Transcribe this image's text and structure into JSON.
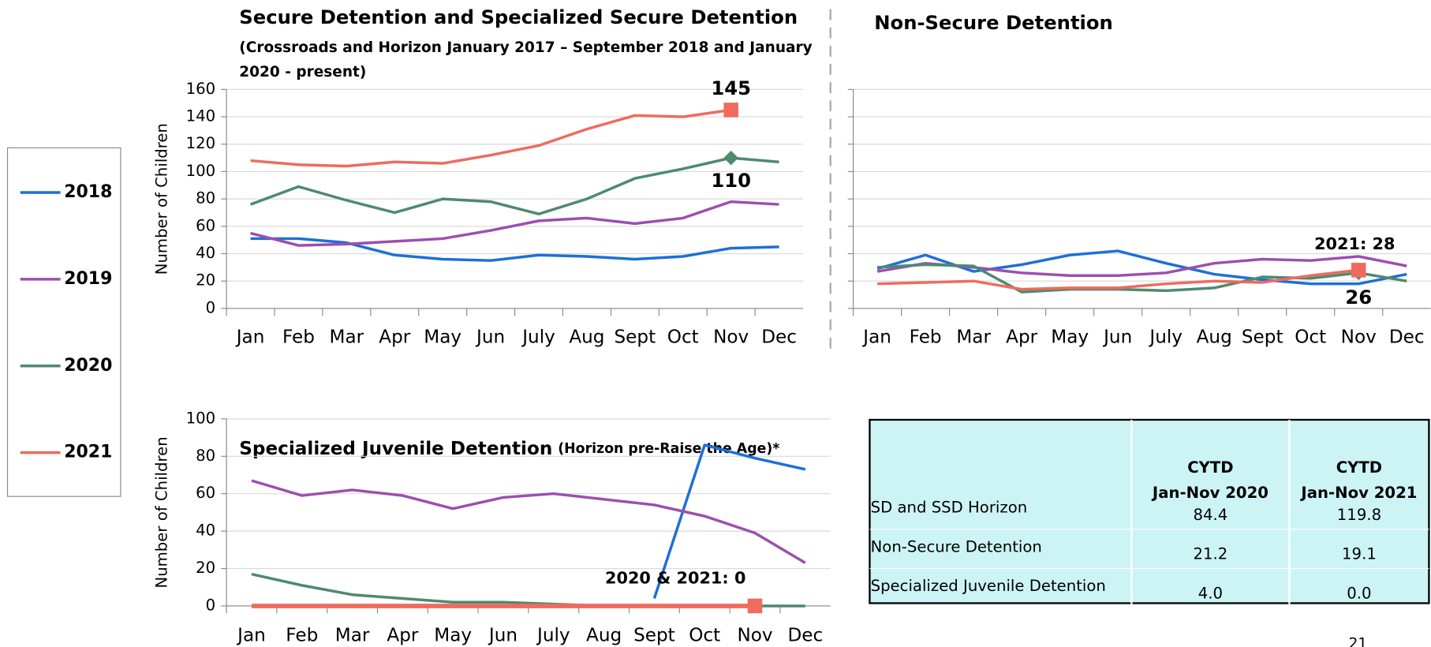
{
  "chart_data": [
    {
      "type": "line",
      "title": "Secure Detention and Specialized Secure Detention",
      "subtitle": "(Crossroads and Horizon January  2017 – September 2018 and January 2020 - present)",
      "ylabel": "Number of Children",
      "categories": [
        "Jan",
        "Feb",
        "Mar",
        "Apr",
        "May",
        "Jun",
        "July",
        "Aug",
        "Sept",
        "Oct",
        "Nov",
        "Dec"
      ],
      "ylim": [
        0,
        160
      ],
      "yticks": [
        0,
        20,
        40,
        60,
        80,
        100,
        120,
        140,
        160
      ],
      "grid": true,
      "series": [
        {
          "name": "2018",
          "color": "#1d6fd8",
          "values": [
            51,
            51,
            48,
            39,
            36,
            35,
            39,
            38,
            36,
            38,
            44,
            45
          ]
        },
        {
          "name": "2019",
          "color": "#9b4fb0",
          "values": [
            55,
            46,
            47,
            49,
            51,
            57,
            64,
            66,
            62,
            66,
            78,
            76
          ]
        },
        {
          "name": "2020",
          "color": "#4e8a6e",
          "marker": "diamond",
          "values": [
            76,
            89,
            79,
            70,
            80,
            78,
            69,
            80,
            95,
            102,
            110,
            107
          ],
          "value_labels": [
            null,
            null,
            null,
            null,
            null,
            null,
            null,
            null,
            null,
            null,
            "110",
            null
          ]
        },
        {
          "name": "2021",
          "color": "#ee6b5e",
          "marker": "square",
          "values": [
            108,
            105,
            104,
            107,
            106,
            112,
            119,
            131,
            141,
            140,
            145,
            null
          ],
          "value_labels": [
            null,
            null,
            null,
            null,
            null,
            null,
            null,
            null,
            null,
            null,
            "145",
            null
          ]
        }
      ]
    },
    {
      "type": "line",
      "title": "Non-Secure Detention",
      "categories": [
        "Jan",
        "Feb",
        "Mar",
        "Apr",
        "May",
        "Jun",
        "July",
        "Aug",
        "Sept",
        "Oct",
        "Nov",
        "Dec"
      ],
      "ylim": [
        0,
        160
      ],
      "yticks": [
        0,
        20,
        40,
        60,
        80,
        100,
        120,
        140,
        160
      ],
      "grid": true,
      "ytick_labels": false,
      "series": [
        {
          "color": "#1d6fd8",
          "values": [
            29,
            39,
            27,
            32,
            39,
            42,
            33,
            25,
            21,
            18,
            18,
            25
          ]
        },
        {
          "color": "#9b4fb0",
          "values": [
            27,
            33,
            30,
            26,
            24,
            24,
            26,
            33,
            36,
            35,
            38,
            31
          ]
        },
        {
          "color": "#4e8a6e",
          "marker": "diamond",
          "values": [
            30,
            32,
            31,
            12,
            14,
            14,
            13,
            15,
            23,
            22,
            26,
            20
          ],
          "value_labels": [
            null,
            null,
            null,
            null,
            null,
            null,
            null,
            null,
            null,
            null,
            "26",
            null
          ]
        },
        {
          "color": "#ee6b5e",
          "marker": "square",
          "values": [
            18,
            19,
            20,
            14,
            15,
            15,
            18,
            20,
            19,
            24,
            28,
            null
          ],
          "value_labels": [
            null,
            null,
            null,
            null,
            null,
            null,
            null,
            null,
            null,
            null,
            "2021: 28",
            null
          ]
        }
      ]
    },
    {
      "type": "line",
      "title": "Specialized Juvenile Detention",
      "subtitle": "(Horizon pre-Raise the Age)*",
      "ylabel": "Number of Children",
      "categories": [
        "Jan",
        "Feb",
        "Mar",
        "Apr",
        "May",
        "Jun",
        "July",
        "Aug",
        "Sept",
        "Oct",
        "Nov",
        "Dec"
      ],
      "ylim": [
        0,
        100
      ],
      "yticks": [
        0,
        20,
        40,
        60,
        80,
        100
      ],
      "grid": true,
      "series": [
        {
          "color": "#1d6fd8",
          "values": [
            null,
            null,
            null,
            null,
            null,
            null,
            null,
            null,
            4,
            86,
            79,
            73
          ]
        },
        {
          "color": "#9b4fb0",
          "values": [
            67,
            59,
            62,
            59,
            52,
            58,
            60,
            57,
            54,
            48,
            39,
            23
          ]
        },
        {
          "color": "#4e8a6e",
          "values": [
            17,
            11,
            6,
            4,
            2,
            2,
            1,
            0,
            0,
            0,
            0,
            0
          ]
        },
        {
          "color": "#ee6b5e",
          "marker": "square",
          "width": 5,
          "values": [
            0,
            0,
            0,
            0,
            0,
            0,
            0,
            0,
            0,
            0,
            0,
            null
          ],
          "value_labels": [
            null,
            null,
            null,
            null,
            null,
            null,
            null,
            null,
            null,
            null,
            "2020 & 2021: 0",
            null
          ]
        }
      ]
    }
  ],
  "table": {
    "columns": [
      [
        "CYTD",
        "Jan-Nov 2020"
      ],
      [
        "CYTD",
        "Jan-Nov 2021"
      ]
    ],
    "rows": [
      [
        "SD and SSD Horizon",
        "84.4",
        "119.8"
      ],
      [
        "Non-Secure Detention",
        "21.2",
        "19.1"
      ],
      [
        "Specialized Juvenile Detention",
        "4.0",
        "0.0"
      ]
    ]
  },
  "page_number": "21"
}
